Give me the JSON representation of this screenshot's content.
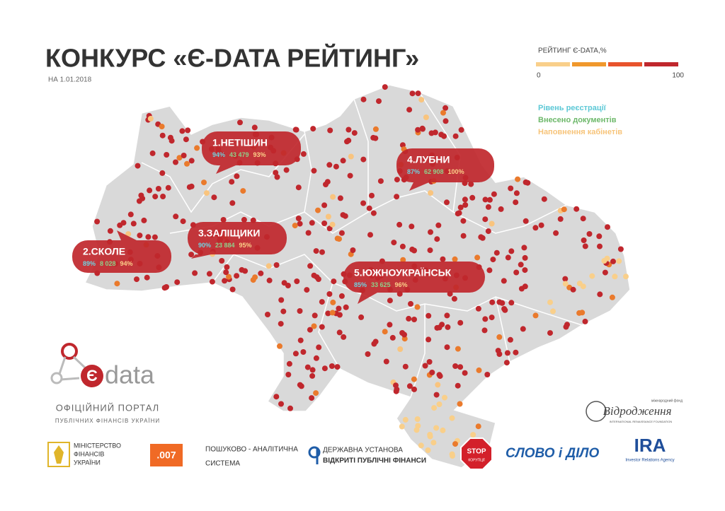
{
  "header": {
    "title": "КОНКУРС «Є-DATA РЕЙТИНГ»",
    "date": "НА 1.01.2018"
  },
  "legend": {
    "title": "РЕЙТИНГ Є-DATA,%",
    "scale_min": 0,
    "scale_max": 100,
    "items": [
      "Рівень реєстрації",
      "Внесено документів",
      "Наповнення кабінетів"
    ]
  },
  "callouts": [
    {
      "name": "1.НЕТІШИН",
      "registration": "94%",
      "documents": "43 479",
      "cabinets": "93%"
    },
    {
      "name": "2.СКОЛЕ",
      "registration": "89%",
      "documents": "8 028",
      "cabinets": "94%"
    },
    {
      "name": "3.ЗАЛІЩИКИ",
      "registration": "90%",
      "documents": "23 884",
      "cabinets": "95%"
    },
    {
      "name": "4.ЛУБНИ",
      "registration": "87%",
      "documents": "62 908",
      "cabinets": "100%"
    },
    {
      "name": "5.ЮЖНОУКРАЇНСЬК",
      "registration": "85%",
      "documents": "33 625",
      "cabinets": "96%"
    }
  ],
  "footer": {
    "edata_logo": "data",
    "portal_line1": "ОФІЦІЙНИЙ ПОРТАЛ",
    "portal_line2": "ПУБЛІЧНИХ ФІНАНСІВ УКРАЇНИ",
    "ministry": [
      "МІНІСТЕРСТВО",
      "ФІНАНСІВ",
      "УКРАЇНИ"
    ],
    "system_logo": ".007",
    "system": [
      "ПОШУКОВО - АНАЛІТИЧНА",
      "СИСТЕМА"
    ],
    "institution": [
      "ДЕРЖАВНА УСТАНОВА",
      "ВІДКРИТІ ПУБЛІЧНІ ФІНАНСИ"
    ],
    "stop": [
      "STOP",
      "КОРУПЦІЇ"
    ],
    "slovo": "СЛОВО і ДІЛО",
    "ira": [
      "IRA",
      "Investor Relations Agency"
    ],
    "renaissance": [
      "міжнародний фонд",
      "Відродження",
      "INTERNATIONAL RENAISSANCE FOUNDATION"
    ]
  }
}
